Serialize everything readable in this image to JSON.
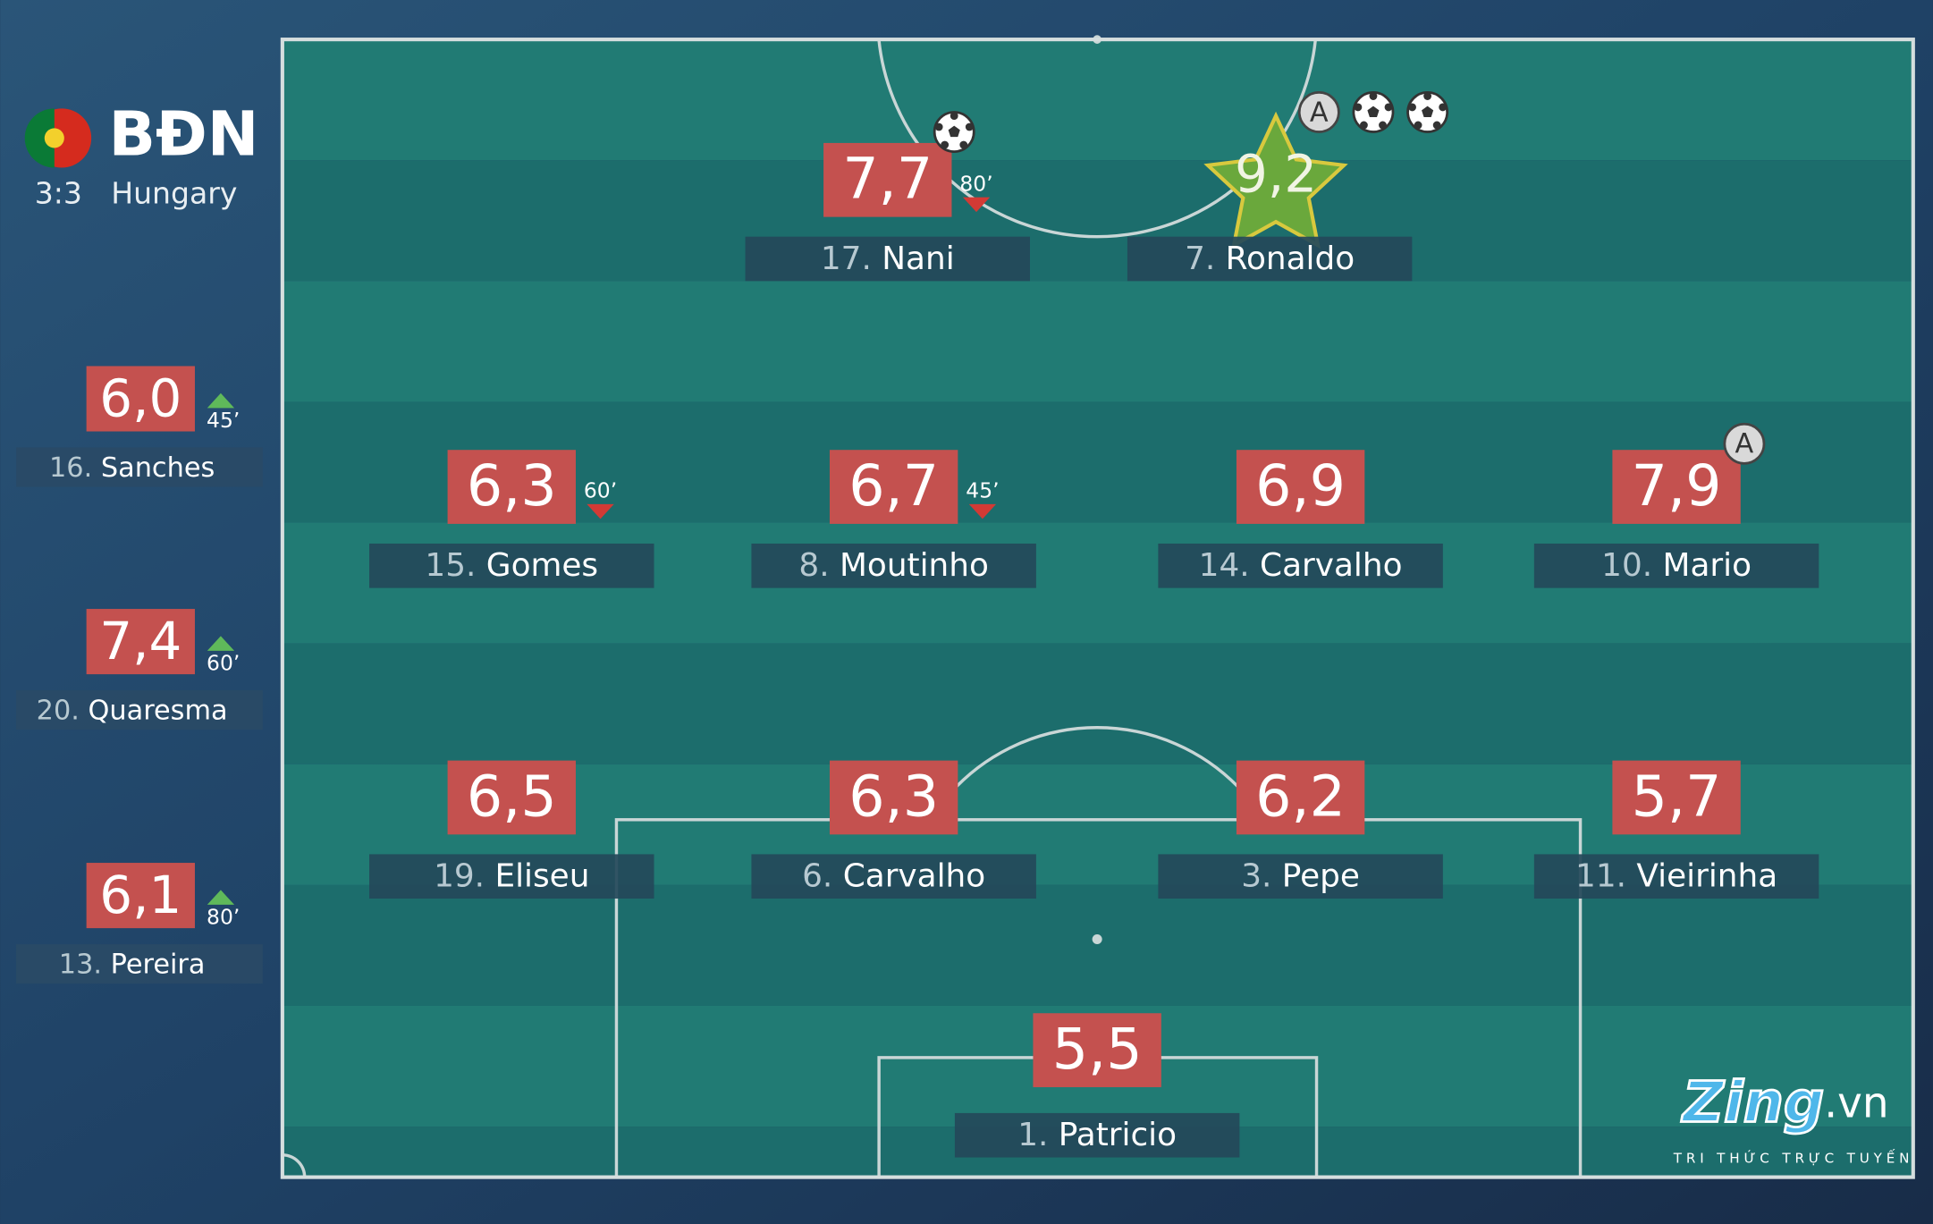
{
  "header": {
    "team": "BĐN",
    "score": "3:3",
    "opponent": "Hungary"
  },
  "starters": [
    {
      "rating": "7,7",
      "number": "17.",
      "name": "Nani",
      "goals": 1,
      "sub_off": "80’"
    },
    {
      "rating": "9,2",
      "number": "7.",
      "name": "Ronaldo",
      "goals": 2,
      "assist": "A",
      "star": true
    },
    {
      "rating": "6,3",
      "number": "15.",
      "name": "Gomes",
      "sub_off": "60’"
    },
    {
      "rating": "6,7",
      "number": "8.",
      "name": "Moutinho",
      "sub_off": "45’"
    },
    {
      "rating": "6,9",
      "number": "14.",
      "name": "Carvalho"
    },
    {
      "rating": "7,9",
      "number": "10.",
      "name": "Mario",
      "assist": "A"
    },
    {
      "rating": "6,5",
      "number": "19.",
      "name": "Eliseu"
    },
    {
      "rating": "6,3",
      "number": "6.",
      "name": "Carvalho"
    },
    {
      "rating": "6,2",
      "number": "3.",
      "name": "Pepe"
    },
    {
      "rating": "5,7",
      "number": "11.",
      "name": "Vieirinha"
    },
    {
      "rating": "5,5",
      "number": "1.",
      "name": "Patricio"
    }
  ],
  "substitutes": [
    {
      "rating": "6,0",
      "number": "16.",
      "name": "Sanches",
      "sub_on": "45’"
    },
    {
      "rating": "7,4",
      "number": "20.",
      "name": "Quaresma",
      "sub_on": "60’"
    },
    {
      "rating": "6,1",
      "number": "13.",
      "name": "Pereira",
      "sub_on": "80’"
    }
  ],
  "logo": {
    "brand": "Zing",
    "domain": ".vn",
    "tagline": "TRI THỨC TRỰC TUYẾN"
  }
}
